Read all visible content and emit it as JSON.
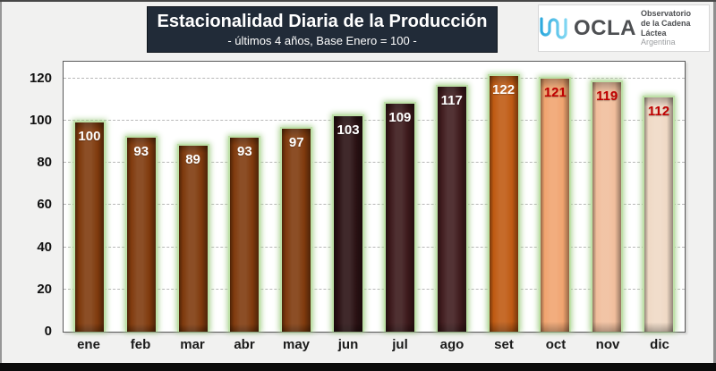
{
  "header": {
    "title": "Estacionalidad Diaria de la Producción",
    "subtitle": "- últimos 4 años, Base Enero = 100 -",
    "box_bg": "#212B38",
    "text_color": "#FFFFFF"
  },
  "logo": {
    "name": "OCLA",
    "line1": "Observatorio",
    "line2": "de la Cadena Láctea",
    "line3": "Argentina",
    "wave_color": "#35B6E6",
    "text_color": "#4D4F52"
  },
  "chart_data": {
    "type": "bar",
    "title": "Estacionalidad Diaria de la Producción",
    "subtitle": "- últimos 4 años, Base Enero = 100 -",
    "categories": [
      "ene",
      "feb",
      "mar",
      "abr",
      "may",
      "jun",
      "jul",
      "ago",
      "set",
      "oct",
      "nov",
      "dic"
    ],
    "values": [
      100,
      93,
      89,
      93,
      97,
      103,
      109,
      117,
      122,
      121,
      119,
      112
    ],
    "bar_colors": [
      "#7F3A0D",
      "#7F3A0D",
      "#7F3A0D",
      "#7F3A0D",
      "#7F3A0D",
      "#2A1113",
      "#3B181A",
      "#401C1E",
      "#BF5A12",
      "#F0A46F",
      "#F1BE9C",
      "#EFD9C5"
    ],
    "label_colors": [
      "#FFFFFF",
      "#FFFFFF",
      "#FFFFFF",
      "#FFFFFF",
      "#FFFFFF",
      "#FFFFFF",
      "#FFFFFF",
      "#FFFFFF",
      "#FFFFFF",
      "#C00000",
      "#C00000",
      "#C00000"
    ],
    "bar_outline_color": "#BFE1A9",
    "xlabel": "",
    "ylabel": "",
    "ylim": [
      0,
      128
    ],
    "yticks": [
      0,
      20,
      40,
      60,
      80,
      100,
      120
    ],
    "grid": "dashed",
    "legend": "none"
  }
}
